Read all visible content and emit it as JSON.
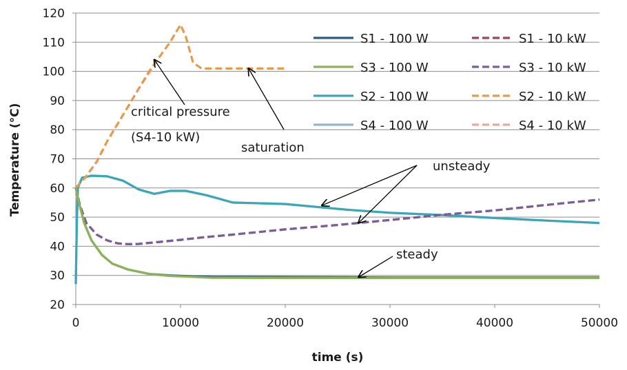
{
  "chart_data": {
    "type": "line",
    "title": "",
    "xlabel": "time (s)",
    "ylabel": "Temperature (°C)",
    "xlim": [
      0,
      50000
    ],
    "ylim": [
      20,
      120
    ],
    "xticks": [
      "0",
      "10000",
      "20000",
      "30000",
      "40000",
      "50000"
    ],
    "yticks": [
      "20",
      "30",
      "40",
      "50",
      "60",
      "70",
      "80",
      "90",
      "100",
      "110",
      "120"
    ],
    "grid": "horizontal",
    "legend_placement": "top-right",
    "series": [
      {
        "name": "S1 - 100 W",
        "color": "#2e5b8f",
        "dash": "solid",
        "points": [
          [
            0,
            60
          ],
          [
            300,
            55
          ],
          [
            800,
            48
          ],
          [
            1500,
            42
          ],
          [
            2500,
            37
          ],
          [
            3500,
            34
          ],
          [
            5000,
            32
          ],
          [
            7000,
            30.5
          ],
          [
            9000,
            30
          ],
          [
            11000,
            29.7
          ],
          [
            13000,
            29.5
          ],
          [
            20000,
            29.4
          ],
          [
            30000,
            29.3
          ],
          [
            40000,
            29.3
          ],
          [
            50000,
            29.3
          ]
        ]
      },
      {
        "name": "S1 - 10 kW",
        "color": "#a0454a",
        "dash": "dashed",
        "points": [
          [
            0,
            60
          ],
          [
            400,
            54
          ],
          [
            1000,
            48
          ],
          [
            2000,
            44
          ],
          [
            3000,
            42
          ],
          [
            4000,
            41
          ],
          [
            5000,
            40.7
          ],
          [
            6000,
            40.8
          ],
          [
            8000,
            41.5
          ],
          [
            10000,
            42.2
          ],
          [
            12000,
            43
          ],
          [
            15000,
            44
          ],
          [
            20000,
            45.8
          ],
          [
            25000,
            47.3
          ],
          [
            30000,
            49
          ],
          [
            35000,
            50.8
          ],
          [
            40000,
            52.3
          ],
          [
            45000,
            54.2
          ],
          [
            50000,
            56
          ]
        ]
      },
      {
        "name": "S3 - 100 W",
        "color": "#8db358",
        "dash": "solid",
        "points": [
          [
            0,
            60
          ],
          [
            300,
            55
          ],
          [
            800,
            48
          ],
          [
            1500,
            42
          ],
          [
            2500,
            37
          ],
          [
            3500,
            34
          ],
          [
            5000,
            32
          ],
          [
            7000,
            30.5
          ],
          [
            9000,
            29.8
          ],
          [
            11000,
            29.5
          ],
          [
            13000,
            29.2
          ],
          [
            20000,
            29.1
          ],
          [
            30000,
            29.1
          ],
          [
            40000,
            29.1
          ],
          [
            50000,
            29.1
          ]
        ]
      },
      {
        "name": "S3 - 10 kW",
        "color": "#7b5c9c",
        "dash": "dashed",
        "points": [
          [
            0,
            60
          ],
          [
            400,
            54
          ],
          [
            1000,
            48
          ],
          [
            2000,
            44
          ],
          [
            3000,
            42
          ],
          [
            4000,
            41
          ],
          [
            5000,
            40.7
          ],
          [
            6000,
            40.8
          ],
          [
            8000,
            41.5
          ],
          [
            10000,
            42.2
          ],
          [
            12000,
            43
          ],
          [
            15000,
            44
          ],
          [
            20000,
            45.8
          ],
          [
            25000,
            47.3
          ],
          [
            30000,
            49
          ],
          [
            35000,
            50.8
          ],
          [
            40000,
            52.3
          ],
          [
            45000,
            54.2
          ],
          [
            50000,
            56
          ]
        ]
      },
      {
        "name": "S2 - 100 W",
        "color": "#3aa6b9",
        "dash": "solid",
        "points": [
          [
            0,
            27
          ],
          [
            100,
            48
          ],
          [
            200,
            60
          ],
          [
            600,
            63.5
          ],
          [
            1500,
            64.2
          ],
          [
            3000,
            64
          ],
          [
            4500,
            62.5
          ],
          [
            6000,
            59.5
          ],
          [
            7500,
            58
          ],
          [
            9000,
            59
          ],
          [
            10500,
            59
          ],
          [
            12500,
            57.5
          ],
          [
            15000,
            55
          ],
          [
            17000,
            54.8
          ],
          [
            20000,
            54.5
          ],
          [
            23000,
            53.5
          ],
          [
            26000,
            52.5
          ],
          [
            30000,
            51.5
          ],
          [
            35000,
            50.7
          ],
          [
            40000,
            49.7
          ],
          [
            45000,
            48.8
          ],
          [
            50000,
            48
          ]
        ]
      },
      {
        "name": "S2 - 10 kW",
        "color": "#e69a4e",
        "dash": "dashed",
        "points": [
          [
            0,
            60
          ],
          [
            1000,
            64
          ],
          [
            2000,
            69
          ],
          [
            3000,
            76
          ],
          [
            4000,
            82
          ],
          [
            5000,
            88
          ],
          [
            6000,
            94
          ],
          [
            7000,
            100
          ],
          [
            8000,
            105
          ],
          [
            9000,
            110
          ],
          [
            10000,
            116
          ],
          [
            10500,
            112
          ],
          [
            11200,
            103
          ],
          [
            12000,
            101
          ],
          [
            14000,
            101
          ],
          [
            16000,
            101
          ],
          [
            18000,
            101
          ],
          [
            20000,
            101
          ]
        ]
      },
      {
        "name": "S4 - 100 W",
        "color": "#95b3d7",
        "dash": "solid",
        "points": [
          [
            0,
            27
          ],
          [
            100,
            48
          ],
          [
            200,
            60
          ],
          [
            600,
            63.5
          ],
          [
            1500,
            64.2
          ],
          [
            3000,
            64
          ],
          [
            4500,
            62.5
          ],
          [
            6000,
            59.5
          ],
          [
            7500,
            58
          ],
          [
            9000,
            59
          ],
          [
            10500,
            59
          ],
          [
            12500,
            57.5
          ],
          [
            15000,
            55
          ],
          [
            17000,
            54.8
          ],
          [
            20000,
            54.5
          ],
          [
            23000,
            53.5
          ],
          [
            26000,
            52.5
          ],
          [
            30000,
            51.5
          ],
          [
            35000,
            50.7
          ],
          [
            40000,
            49.7
          ],
          [
            45000,
            48.8
          ],
          [
            50000,
            48
          ]
        ]
      },
      {
        "name": "S4 - 10 kW",
        "color": "#e6a99a",
        "dash": "dashed",
        "points": [
          [
            0,
            60
          ],
          [
            1000,
            64
          ],
          [
            2000,
            69
          ],
          [
            3000,
            76
          ],
          [
            4000,
            82
          ],
          [
            5000,
            88
          ],
          [
            6000,
            94
          ],
          [
            7000,
            99.5
          ],
          [
            7800,
            104
          ]
        ]
      }
    ],
    "annotations": [
      {
        "text": "critical pressure",
        "tip": [
          7500,
          104
        ]
      },
      {
        "text": "(S4-10 kW)"
      },
      {
        "text": "saturation",
        "tip": [
          16500,
          101
        ]
      },
      {
        "text": "unsteady",
        "tips": [
          [
            23500,
            54
          ],
          [
            27000,
            48
          ]
        ]
      },
      {
        "text": "steady",
        "tip": [
          27000,
          29.4
        ]
      }
    ]
  }
}
